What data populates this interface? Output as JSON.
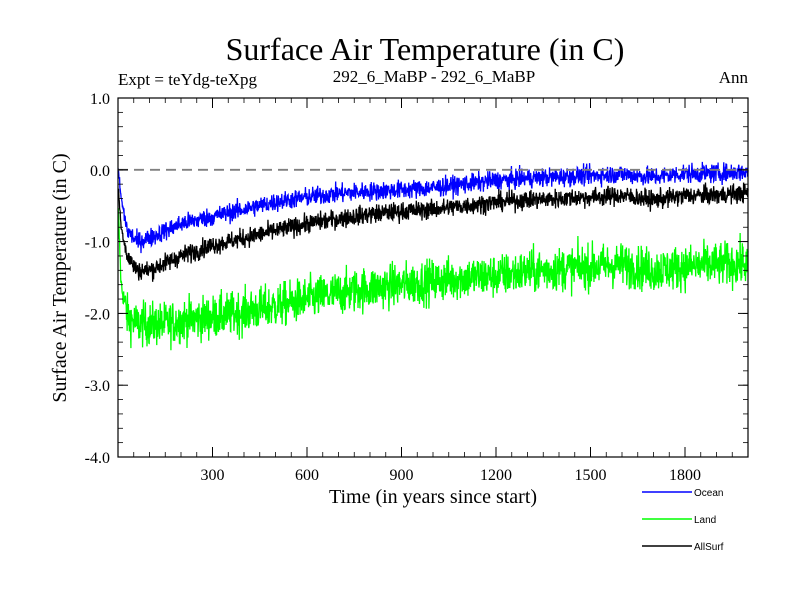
{
  "chart_data": {
    "type": "line",
    "title": "Surface Air Temperature (in C)",
    "subtitle_left": "Expt = teYdg-teXpg",
    "subtitle_center": "292_6_MaBP - 292_6_MaBP",
    "subtitle_right": "Ann",
    "xlabel": "Time (in years since start)",
    "ylabel": "Surface Air Temperature (in C)",
    "xlim": [
      0,
      2000
    ],
    "ylim": [
      -4.0,
      1.0
    ],
    "x_ticks": [
      300,
      600,
      900,
      1200,
      1500,
      1800
    ],
    "x_tick_labels": [
      "300",
      "600",
      "900",
      "1200",
      "1500",
      "1800"
    ],
    "y_ticks": [
      1.0,
      0.0,
      -1.0,
      -2.0,
      -3.0,
      -4.0
    ],
    "y_tick_labels": [
      "1.0",
      "0.0",
      "-1.0",
      "-2.0",
      "-3.0",
      "-4.0"
    ],
    "reference_line": {
      "y": 0.0,
      "style": "dashed",
      "color": "#808080"
    },
    "series": [
      {
        "name": "Ocean",
        "color": "#0000ff",
        "x": [
          0,
          10,
          30,
          60,
          100,
          150,
          200,
          300,
          400,
          500,
          600,
          700,
          800,
          900,
          1000,
          1100,
          1200,
          1300,
          1400,
          1500,
          1600,
          1700,
          1800,
          1900,
          2000
        ],
        "y": [
          0.05,
          -0.4,
          -0.85,
          -1.0,
          -0.95,
          -0.85,
          -0.75,
          -0.65,
          -0.55,
          -0.45,
          -0.38,
          -0.33,
          -0.3,
          -0.28,
          -0.25,
          -0.2,
          -0.15,
          -0.12,
          -0.1,
          -0.08,
          -0.06,
          -0.1,
          -0.05,
          -0.05,
          -0.02
        ],
        "noise": 0.13
      },
      {
        "name": "Land",
        "color": "#00ff00",
        "x": [
          0,
          10,
          30,
          60,
          100,
          150,
          200,
          300,
          400,
          500,
          600,
          700,
          800,
          900,
          1000,
          1100,
          1200,
          1300,
          1400,
          1500,
          1600,
          1700,
          1800,
          1900,
          2000
        ],
        "y": [
          -0.5,
          -1.6,
          -2.05,
          -2.15,
          -2.15,
          -2.15,
          -2.1,
          -2.05,
          -1.98,
          -1.9,
          -1.8,
          -1.72,
          -1.65,
          -1.6,
          -1.55,
          -1.5,
          -1.48,
          -1.42,
          -1.38,
          -1.35,
          -1.32,
          -1.4,
          -1.35,
          -1.32,
          -1.3
        ],
        "noise": 0.3
      },
      {
        "name": "AllSurf",
        "color": "#000000",
        "x": [
          0,
          10,
          30,
          60,
          100,
          150,
          200,
          300,
          400,
          500,
          600,
          700,
          800,
          900,
          1000,
          1100,
          1200,
          1300,
          1400,
          1500,
          1600,
          1700,
          1800,
          1900,
          2000
        ],
        "y": [
          -0.2,
          -0.8,
          -1.2,
          -1.4,
          -1.4,
          -1.3,
          -1.2,
          -1.05,
          -0.95,
          -0.85,
          -0.75,
          -0.68,
          -0.62,
          -0.58,
          -0.55,
          -0.5,
          -0.45,
          -0.42,
          -0.4,
          -0.38,
          -0.36,
          -0.42,
          -0.36,
          -0.35,
          -0.32
        ],
        "noise": 0.13
      }
    ],
    "legend": [
      "Ocean",
      "Land",
      "AllSurf"
    ],
    "legend_position": "bottom-right"
  }
}
